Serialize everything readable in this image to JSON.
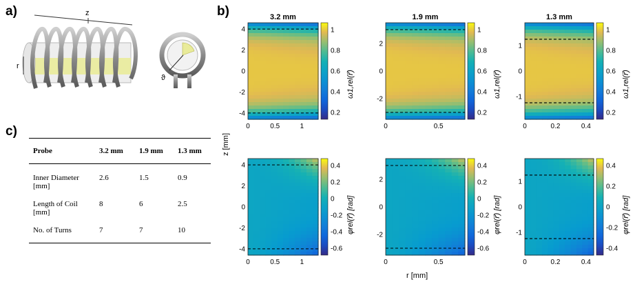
{
  "panels": {
    "a": "a)",
    "b": "b)",
    "c": "c)"
  },
  "coil": {
    "z_label": "z",
    "r_label": "r",
    "theta_label": "ϑ"
  },
  "table": {
    "header": [
      "Probe",
      "3.2 mm",
      "1.9 mm",
      "1.3 mm"
    ],
    "rows": [
      {
        "label_line1": "Inner Diameter",
        "label_line2": "[mm]",
        "values": [
          "2.6",
          "1.5",
          "0.9"
        ]
      },
      {
        "label_line1": "Length of Coil",
        "label_line2": "[mm]",
        "values": [
          "8",
          "6",
          "2.5"
        ]
      },
      {
        "label_line1": "No. of Turns",
        "label_line2": "",
        "values": [
          "7",
          "7",
          "10"
        ]
      }
    ]
  },
  "chart_data": [
    {
      "type": "heatmap",
      "title": "3.2 mm",
      "row": "top",
      "xlim": [
        0,
        1.3
      ],
      "ylim": [
        -4.6,
        4.6
      ],
      "xticks": [
        "0",
        "0.5",
        "1"
      ],
      "yticks": [
        "4",
        "2",
        "0",
        "-2",
        "-4"
      ],
      "colorbar": {
        "label": "ω1,rel(r⃗)",
        "ticks": [
          "1",
          "0.8",
          "0.6",
          "0.4",
          "0.2"
        ]
      },
      "dashed_y": [
        4,
        -4
      ]
    },
    {
      "type": "heatmap",
      "title": "1.9 mm",
      "row": "top",
      "xlim": [
        0,
        0.75
      ],
      "ylim": [
        -3.5,
        3.5
      ],
      "xticks": [
        "0",
        "0.5"
      ],
      "yticks": [
        "2",
        "0",
        "-2"
      ],
      "colorbar": {
        "label": "ω1,rel(r⃗)",
        "ticks": [
          "1",
          "0.8",
          "0.6",
          "0.4",
          "0.2"
        ]
      },
      "dashed_y": [
        3,
        -3
      ]
    },
    {
      "type": "heatmap",
      "title": "1.3 mm",
      "row": "top",
      "xlim": [
        0,
        0.45
      ],
      "ylim": [
        -1.9,
        1.9
      ],
      "xticks": [
        "0",
        "0.2",
        "0.4"
      ],
      "yticks": [
        "1",
        "0",
        "-1"
      ],
      "colorbar": {
        "label": "ω1,rel(r⃗)",
        "ticks": [
          "1",
          "0.8",
          "0.6",
          "0.4",
          "0.2"
        ]
      },
      "dashed_y": [
        1.25,
        -1.25
      ]
    },
    {
      "type": "heatmap",
      "title": "",
      "row": "bottom",
      "xlim": [
        0,
        1.3
      ],
      "ylim": [
        -4.6,
        4.6
      ],
      "xticks": [
        "0",
        "0.5",
        "1"
      ],
      "yticks": [
        "4",
        "2",
        "0",
        "-2",
        "-4"
      ],
      "colorbar": {
        "label": "φrel(r⃗) [rad]",
        "ticks": [
          "0.4",
          "0.2",
          "0",
          "-0.2",
          "-0.4",
          "-0.6"
        ]
      },
      "dashed_y": [
        4,
        -4
      ]
    },
    {
      "type": "heatmap",
      "title": "",
      "row": "bottom",
      "xlim": [
        0,
        0.75
      ],
      "ylim": [
        -3.5,
        3.5
      ],
      "xticks": [
        "0",
        "0.5"
      ],
      "yticks": [
        "2",
        "0",
        "-2"
      ],
      "colorbar": {
        "label": "φrel(r⃗) [rad]",
        "ticks": [
          "0.4",
          "0.2",
          "0",
          "-0.2",
          "-0.4",
          "-0.6"
        ]
      },
      "dashed_y": [
        3,
        -3
      ]
    },
    {
      "type": "heatmap",
      "title": "",
      "row": "bottom",
      "xlim": [
        0,
        0.45
      ],
      "ylim": [
        -1.9,
        1.9
      ],
      "xticks": [
        "0",
        "0.2",
        "0.4"
      ],
      "yticks": [
        "1",
        "0",
        "-1"
      ],
      "colorbar": {
        "label": "φrel(r⃗) [rad]",
        "ticks": [
          "0.4",
          "0.2",
          "0",
          "-0.2",
          "-0.4"
        ]
      },
      "dashed_y": [
        1.25,
        -1.25
      ]
    }
  ],
  "axes": {
    "xlabel": "r [mm]",
    "ylabel": "z [mm]"
  }
}
